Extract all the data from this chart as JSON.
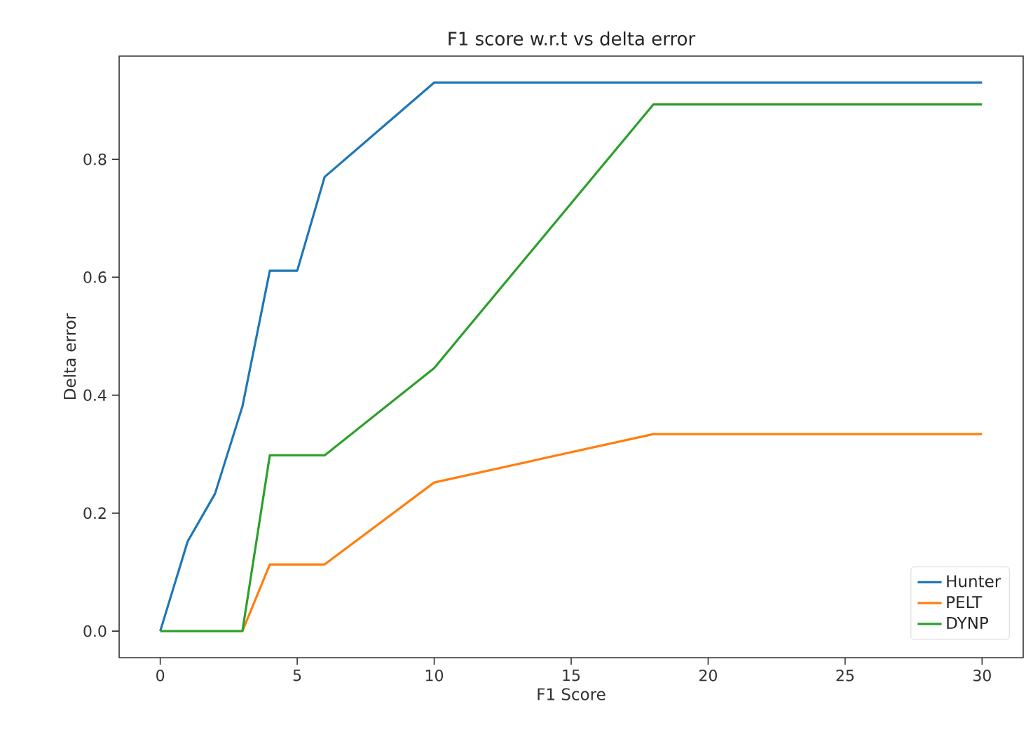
{
  "chart_data": {
    "type": "line",
    "title": "F1 score w.r.t vs delta error",
    "xlabel": "F1 Score",
    "ylabel": "Delta error",
    "x": [
      0,
      1,
      2,
      3,
      4,
      5,
      6,
      10,
      18,
      30
    ],
    "series": [
      {
        "name": "Hunter",
        "color": "#1f77b4",
        "values": [
          0,
          0.152,
          0.233,
          0.381,
          0.611,
          0.611,
          0.77,
          0.93,
          0.93,
          0.93
        ]
      },
      {
        "name": "PELT",
        "color": "#ff7f0e",
        "values": [
          null,
          null,
          null,
          0,
          0.113,
          0.113,
          0.113,
          0.252,
          0.334,
          0.334
        ]
      },
      {
        "name": "DYNP",
        "color": "#2ca02c",
        "values": [
          0,
          0,
          0,
          0,
          0.298,
          0.298,
          0.298,
          0.446,
          0.893,
          0.893
        ]
      }
    ],
    "xlim": [
      -1.5,
      31.5
    ],
    "ylim": [
      -0.045,
      0.975
    ],
    "xticks": [
      0,
      5,
      10,
      15,
      20,
      25,
      30
    ],
    "yticks": [
      {
        "value": 0,
        "label": "0.0"
      },
      {
        "value": 0.2,
        "label": "0.2"
      },
      {
        "value": 0.4,
        "label": "0.4"
      },
      {
        "value": 0.6,
        "label": "0.6"
      },
      {
        "value": 0.8,
        "label": "0.8"
      }
    ],
    "legend": "bottom right",
    "grid": false,
    "line_style": "solid",
    "marker": "none"
  }
}
